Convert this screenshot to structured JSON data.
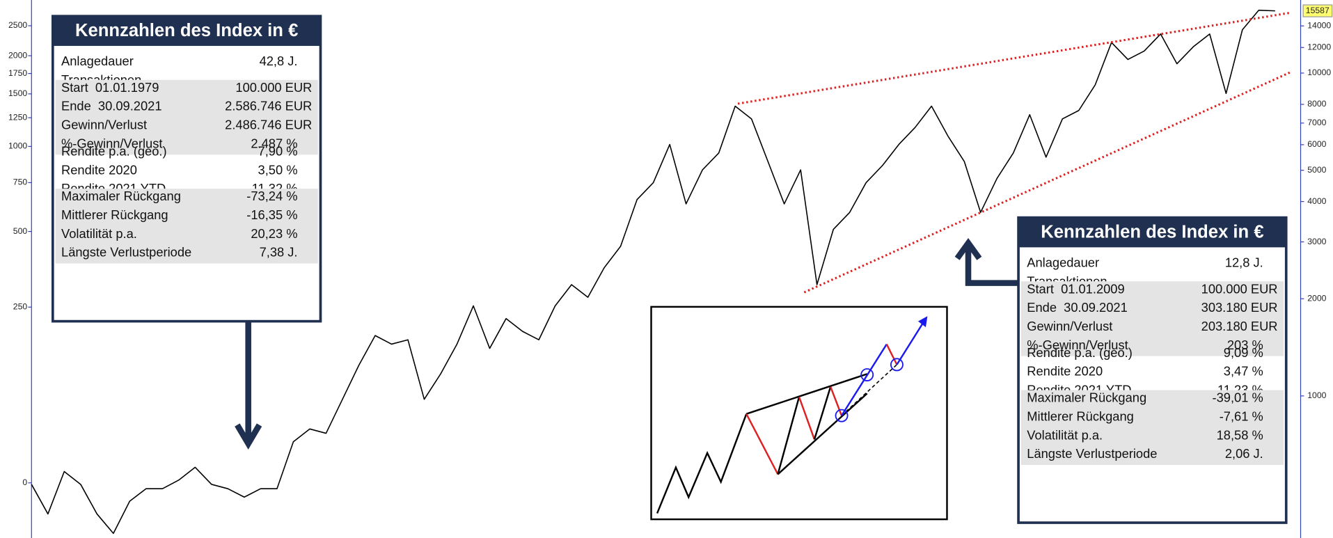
{
  "chart_data": {
    "type": "line",
    "yscale": "log",
    "y2scale": "log-percent",
    "categories": [
      null,
      null,
      null,
      null,
      null,
      null,
      null,
      null,
      null,
      null,
      null,
      null,
      null,
      null,
      null,
      null,
      null,
      null,
      null,
      null,
      null,
      null,
      null,
      null,
      null,
      null,
      null,
      null,
      null,
      null,
      null,
      null,
      null,
      null,
      null,
      null,
      null,
      null,
      null,
      null,
      null,
      null,
      null,
      null,
      null,
      null,
      null,
      null,
      null,
      null,
      null,
      null,
      null,
      null,
      null,
      null,
      null,
      null,
      null,
      null,
      null,
      null,
      null,
      null,
      null,
      null,
      null,
      null,
      null,
      null,
      null,
      null,
      null,
      null,
      null,
      null,
      null
    ],
    "values": [
      532,
      431,
      583,
      532,
      431,
      375,
      472,
      516,
      516,
      549,
      601,
      532,
      516,
      486,
      516,
      516,
      721,
      790,
      766,
      976,
      1243,
      1538,
      1447,
      1492,
      976,
      1170,
      1447,
      1900,
      1404,
      1736,
      1585,
      1492,
      1900,
      2212,
      2020,
      2497,
      2906,
      4055,
      4577,
      6010,
      3933,
      5012,
      5657,
      7896,
      7210,
      5325,
      3933,
      5012,
      2212,
      3280,
      3702,
      4577,
      5169,
      6010,
      6787,
      7896,
      6388,
      5325,
      3702,
      4718,
      5657,
      7431,
      5490,
      7210,
      7659,
      9188,
      12434,
      11020,
      11706,
      13216,
      10689,
      12066,
      13216,
      8647,
      13621,
      15655,
      15587
    ],
    "color": "#000000",
    "ylim": [
      363,
      16840
    ],
    "yticks": [
      1000,
      2000,
      3000,
      4000,
      5000,
      6000,
      7000,
      8000,
      10000,
      12000,
      14000
    ],
    "y2lim": [
      -32.5,
      3024
    ],
    "y2ticks": [
      0,
      250,
      500,
      750,
      1000,
      1250,
      1500,
      1750,
      2000,
      2500
    ],
    "last_value": 15587
  },
  "panels": [
    {
      "title": "Kennzahlen des Index in €",
      "groups": [
        [
          [
            "Anlagedauer",
            "42,8 J."
          ],
          [
            "Transaktionen"
          ]
        ],
        [
          [
            "Start  01.01.1979",
            "100.000 EUR"
          ],
          [
            "Ende  30.09.2021",
            "2.586.746 EUR"
          ],
          [
            "Gewinn/Verlust",
            "2.486.746 EUR"
          ],
          [
            "%-Gewinn/Verlust",
            "2.487 %"
          ]
        ],
        [
          [
            "Rendite p.a. (geo.)",
            "7,90 %"
          ],
          [
            "Rendite 2020",
            "3,50 %"
          ],
          [
            "Rendite 2021 YTD",
            "11,32 %"
          ]
        ],
        [
          [
            "Maximaler Rückgang",
            "-73,24 %"
          ],
          [
            "Mittlerer Rückgang",
            "-16,35 %"
          ],
          [
            "Volatilität p.a.",
            "20,23 %"
          ],
          [
            "Längste Verlustperiode",
            "7,38 J."
          ]
        ]
      ]
    },
    {
      "title": "Kennzahlen des Index in €",
      "groups": [
        [
          [
            "Anlagedauer",
            "12,8 J."
          ],
          [
            "Transaktionen"
          ]
        ],
        [
          [
            "Start  01.01.2009",
            "100.000 EUR"
          ],
          [
            "Ende  30.09.2021",
            "303.180 EUR"
          ],
          [
            "Gewinn/Verlust",
            "203.180 EUR"
          ],
          [
            "%-Gewinn/Verlust",
            "203 %"
          ]
        ],
        [
          [
            "Rendite p.a. (geo.)",
            "9,09 %"
          ],
          [
            "Rendite 2020",
            "3,47 %"
          ],
          [
            "Rendite 2021 YTD",
            "11,23 %"
          ]
        ],
        [
          [
            "Maximaler Rückgang",
            "-39,01 %"
          ],
          [
            "Mittlerer Rückgang",
            "-7,61 %"
          ],
          [
            "Volatilität p.a.",
            "18,58 %"
          ],
          [
            "Längste Verlustperiode",
            "2,06 J."
          ]
        ]
      ]
    }
  ]
}
